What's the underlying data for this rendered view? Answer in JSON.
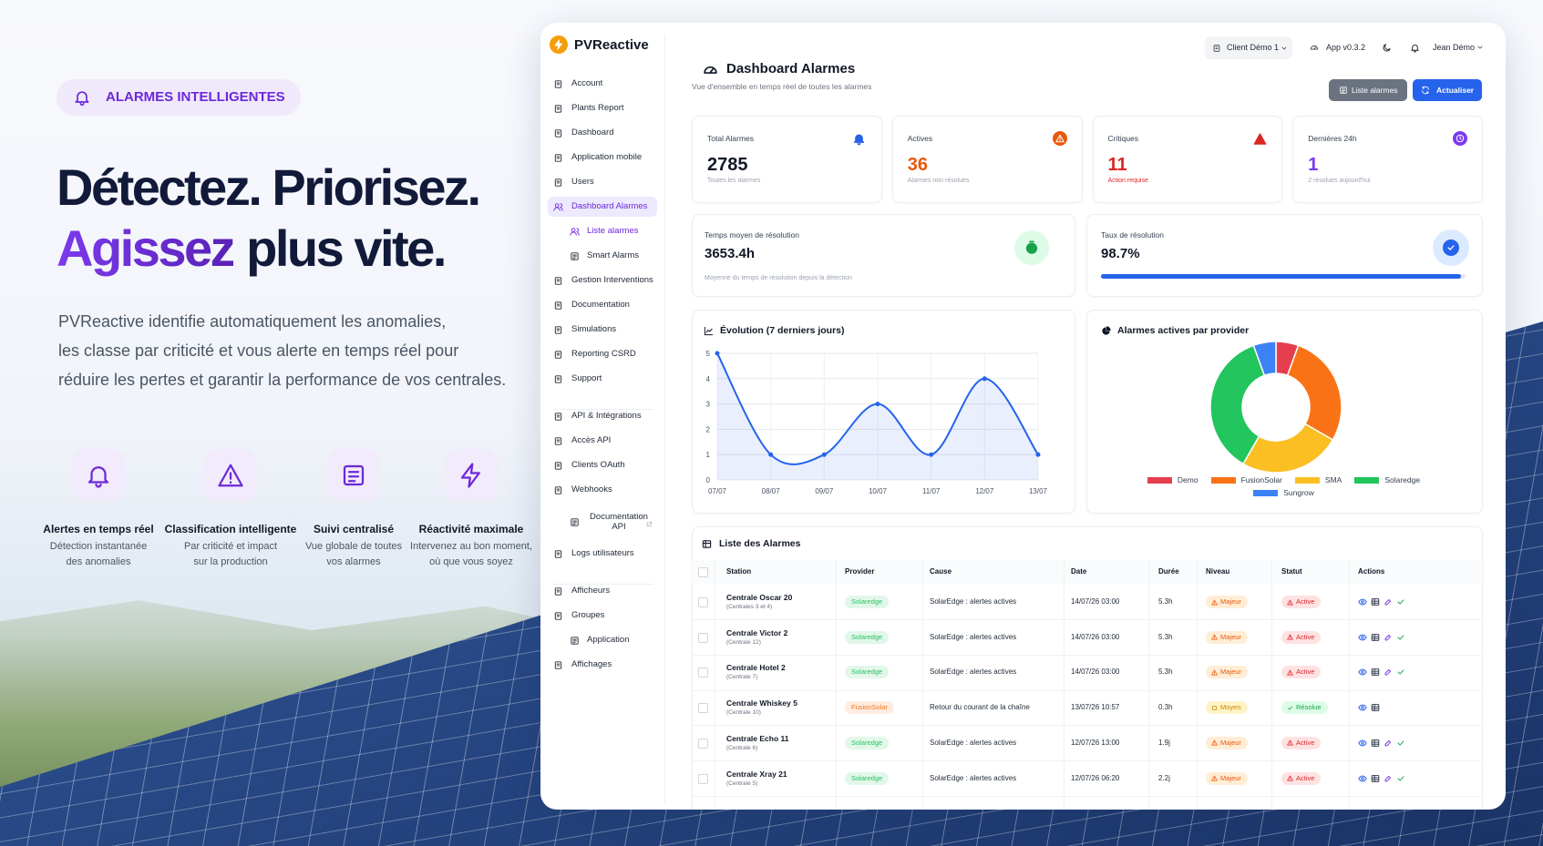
{
  "hero": {
    "badge": "ALARMES INTELLIGENTES",
    "headline_line1": "Détectez. Priorisez.",
    "headline_accent": "Agissez",
    "headline_rest": "plus vite.",
    "description": [
      "PVReactive identifie automatiquement les anomalies,",
      "les classe par criticité et vous alerte en temps réel pour",
      "réduire les pertes et garantir la performance de vos centrales."
    ],
    "features": [
      {
        "icon": "bell",
        "title": "Alertes en temps réel",
        "text": [
          "Détection instantanée",
          "des anomalies"
        ]
      },
      {
        "icon": "warning",
        "title": "Classification intelligente",
        "text": [
          "Par criticité et impact",
          "sur la production"
        ]
      },
      {
        "icon": "list",
        "title": "Suivi centralisé",
        "text": [
          "Vue globale de toutes",
          "vos alarmes"
        ]
      },
      {
        "icon": "bolt",
        "title": "Réactivité maximale",
        "text": [
          "Intervenez au bon moment,",
          "où que vous soyez"
        ]
      }
    ]
  },
  "app": {
    "brand": "PVReactive",
    "nav": [
      [
        {
          "label": "Account"
        },
        {
          "label": "Plants Report"
        },
        {
          "label": "Dashboard"
        },
        {
          "label": "Application mobile"
        },
        {
          "label": "Users"
        },
        {
          "label": "Dashboard Alarmes",
          "active": true
        },
        {
          "label": "Liste alarmes",
          "sub": true,
          "active": true
        },
        {
          "label": "Smart Alarms",
          "sub": true
        },
        {
          "label": "Gestion Interventions"
        },
        {
          "label": "Documentation"
        },
        {
          "label": "Simulations"
        },
        {
          "label": "Reporting CSRD"
        },
        {
          "label": "Support"
        }
      ],
      [
        {
          "label": "API & Intégrations"
        },
        {
          "label": "Accès API"
        },
        {
          "label": "Clients OAuth"
        },
        {
          "label": "Webhooks"
        },
        {
          "label": "Documentation API",
          "sub": true,
          "external": true
        },
        {
          "label": "Logs utilisateurs"
        }
      ],
      [
        {
          "label": "Afficheurs"
        },
        {
          "label": "Groupes"
        },
        {
          "label": "Application",
          "sub": true
        },
        {
          "label": "Affichages"
        }
      ]
    ],
    "topbar": {
      "client": "Client Démo 1",
      "version": "App v0.3.2",
      "user": "Jean Démo"
    },
    "header": {
      "title": "Dashboard Alarmes",
      "subtitle": "Vue d'ensemble en temps réel de toutes les alarmes",
      "buttons": [
        "Liste alarmes",
        "Actualiser"
      ]
    },
    "stats": [
      {
        "label": "Total Alarmes",
        "value": 2785,
        "note": "Toutes les alarmes",
        "icon": "bell",
        "color": "#2563eb",
        "value_color": "#111827"
      },
      {
        "label": "Actives",
        "value": 36,
        "note": "Alarmes non résolues",
        "icon": "alert",
        "color": "#ea580c",
        "value_color": "#ea580c"
      },
      {
        "label": "Critiques",
        "value": 11,
        "note": "Action requise",
        "icon": "warning",
        "color": "#dc2626",
        "value_color": "#dc2626",
        "note_color": "#dc2626"
      },
      {
        "label": "Dernières 24h",
        "value": 1,
        "note": "2 résolues aujourd'hui",
        "icon": "clock",
        "color": "#7c3aed",
        "value_color": "#7c3aed"
      }
    ],
    "avg_resolution": {
      "label": "Temps moyen de résolution",
      "value": "3653.4h",
      "note": "Moyenne du temps de résolution depuis la détection"
    },
    "resolution_rate": {
      "label": "Taux de résolution",
      "value": 98.7,
      "value_label": "98.7%"
    },
    "line_chart": {
      "type": "line",
      "title": "Évolution (7 derniers jours)",
      "categories": [
        "07/07",
        "08/07",
        "09/07",
        "10/07",
        "11/07",
        "12/07",
        "13/07"
      ],
      "values": [
        5,
        1,
        1,
        3,
        1,
        4,
        1
      ],
      "ylim": [
        0,
        5
      ],
      "yticks": [
        0,
        1,
        2,
        3,
        4,
        5
      ],
      "color": "#2563eb",
      "grid": true
    },
    "donut_chart": {
      "type": "donut",
      "title": "Alarmes actives par provider",
      "categories": [
        "Demo",
        "FusionSolar",
        "SMA",
        "Solaredge",
        "Sungrow"
      ],
      "values": [
        2,
        10,
        9,
        13,
        2
      ],
      "colors": [
        "#e53e4f",
        "#f97316",
        "#fbbf24",
        "#22c55e",
        "#3b82f6"
      ]
    },
    "table": {
      "title": "Liste des Alarmes",
      "columns": [
        "Station",
        "Provider",
        "Cause",
        "Date",
        "Durée",
        "Niveau",
        "Statut",
        "Actions"
      ],
      "rows": [
        {
          "station": "Centrale Oscar 20",
          "site": "(Centrales 3 et 4)",
          "provider": "Solaredge",
          "cause": "SolarEdge : alertes actives",
          "date": "14/07/26 03:00",
          "duration": "5.3h",
          "level": "Majeur",
          "status": "Active"
        },
        {
          "station": "Centrale Victor 2",
          "site": "(Centrale 12)",
          "provider": "Solaredge",
          "cause": "SolarEdge : alertes actives",
          "date": "14/07/26 03:00",
          "duration": "5.3h",
          "level": "Majeur",
          "status": "Active"
        },
        {
          "station": "Centrale Hotel 2",
          "site": "(Centrale 7)",
          "provider": "Solaredge",
          "cause": "SolarEdge : alertes actives",
          "date": "14/07/26 03:00",
          "duration": "5.3h",
          "level": "Majeur",
          "status": "Active"
        },
        {
          "station": "Centrale Whiskey 5",
          "site": "(Centrale 10)",
          "provider": "FusionSolar",
          "cause": "Retour du courant de la chaîne",
          "date": "13/07/26 10:57",
          "duration": "0.3h",
          "level": "Moyen",
          "status": "Résolue"
        },
        {
          "station": "Centrale Echo 11",
          "site": "(Centrale 6)",
          "provider": "Solaredge",
          "cause": "SolarEdge : alertes actives",
          "date": "12/07/26 13:00",
          "duration": "1.9j",
          "level": "Majeur",
          "status": "Active"
        },
        {
          "station": "Centrale Xray 21",
          "site": "(Centrale 5)",
          "provider": "Solaredge",
          "cause": "SolarEdge : alertes actives",
          "date": "12/07/26 06:20",
          "duration": "2.2j",
          "level": "Majeur",
          "status": "Active"
        }
      ],
      "badge_styles": {
        "Majeur": {
          "color": "#ea580c",
          "bg": "#ffedd5",
          "icon": "warning"
        },
        "Moyen": {
          "color": "#ca8a04",
          "bg": "#fef3c7",
          "icon": "square"
        },
        "Active": {
          "color": "#dc2626",
          "bg": "#fee2e2",
          "icon": "warning",
          "actions": [
            "eye",
            "grid",
            "tool",
            "check"
          ]
        },
        "Résolue": {
          "color": "#16a34a",
          "bg": "#dcfce7",
          "icon": "check",
          "actions": [
            "eye",
            "grid"
          ]
        }
      }
    }
  }
}
